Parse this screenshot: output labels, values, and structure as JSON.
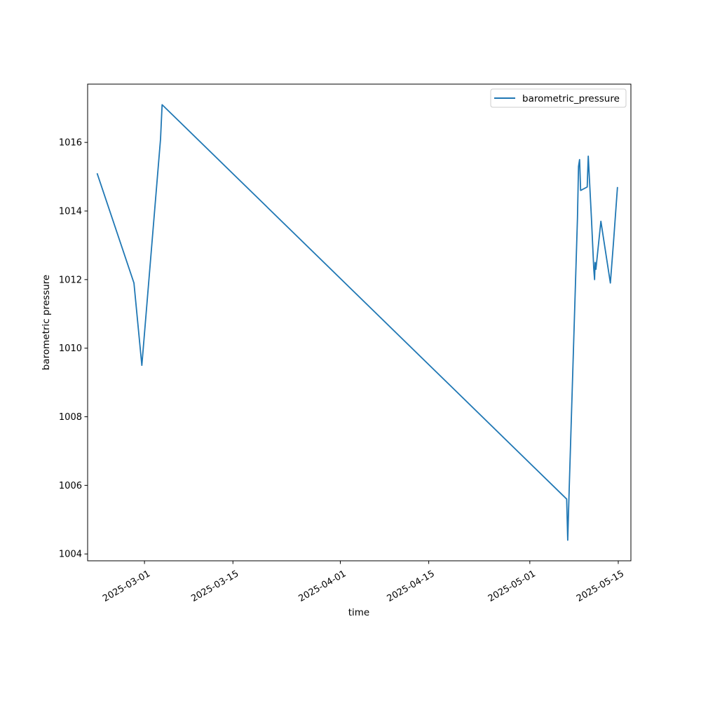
{
  "chart_data": {
    "type": "line",
    "title": "",
    "xlabel": "time",
    "ylabel": "barometric pressure",
    "grid": false,
    "legend": {
      "position": "top-right",
      "entries": [
        "barometric_pressure"
      ]
    },
    "colors": {
      "series": "#1f77b4",
      "axes": "#000000",
      "background": "#ffffff"
    },
    "xlim": [
      "2025-02-20",
      "2025-05-17"
    ],
    "ylim": [
      1003.8,
      1017.7
    ],
    "x_ticks": [
      "2025-03-01",
      "2025-03-15",
      "2025-04-01",
      "2025-04-15",
      "2025-05-01",
      "2025-05-15"
    ],
    "y_ticks": [
      "1004",
      "1006",
      "1008",
      "1010",
      "1012",
      "1014",
      "1016"
    ],
    "series": [
      {
        "name": "barometric_pressure",
        "points": [
          {
            "x": "2025-02-21T12:00",
            "y": 1015.1
          },
          {
            "x": "2025-02-27T08:00",
            "y": 1011.9
          },
          {
            "x": "2025-02-28T14:00",
            "y": 1009.5
          },
          {
            "x": "2025-03-03T13:00",
            "y": 1016.1
          },
          {
            "x": "2025-03-03T19:00",
            "y": 1017.1
          },
          {
            "x": "2025-05-06T20:00",
            "y": 1005.6
          },
          {
            "x": "2025-05-07T00:00",
            "y": 1004.4
          },
          {
            "x": "2025-05-07T06:00",
            "y": 1006.0
          },
          {
            "x": "2025-05-08T13:00",
            "y": 1013.8
          },
          {
            "x": "2025-05-08T17:00",
            "y": 1015.3
          },
          {
            "x": "2025-05-08T21:00",
            "y": 1015.5
          },
          {
            "x": "2025-05-09T01:00",
            "y": 1014.6
          },
          {
            "x": "2025-05-10T02:00",
            "y": 1014.7
          },
          {
            "x": "2025-05-10T06:00",
            "y": 1015.6
          },
          {
            "x": "2025-05-10T18:00",
            "y": 1013.8
          },
          {
            "x": "2025-05-11T03:00",
            "y": 1012.3
          },
          {
            "x": "2025-05-11T06:00",
            "y": 1012.0
          },
          {
            "x": "2025-05-11T08:00",
            "y": 1012.5
          },
          {
            "x": "2025-05-11T11:00",
            "y": 1012.3
          },
          {
            "x": "2025-05-12T06:00",
            "y": 1013.7
          },
          {
            "x": "2025-05-13T18:00",
            "y": 1011.9
          },
          {
            "x": "2025-05-14T06:00",
            "y": 1013.1
          },
          {
            "x": "2025-05-14T21:00",
            "y": 1014.7
          }
        ]
      }
    ]
  }
}
